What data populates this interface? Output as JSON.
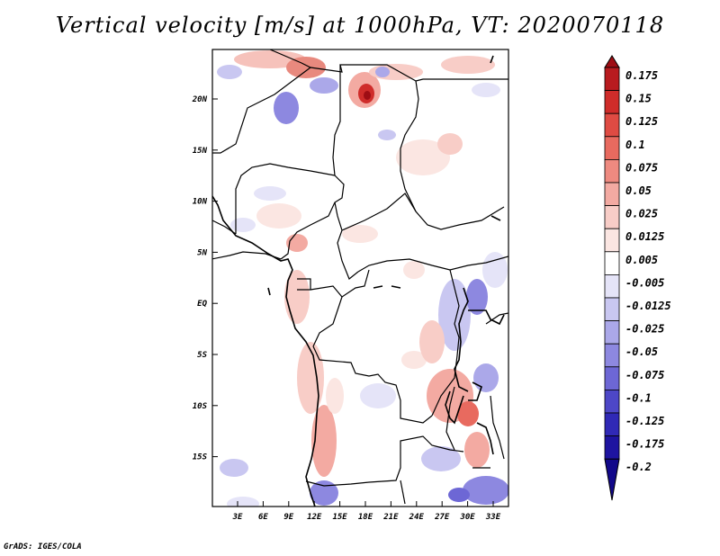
{
  "title": "Vertical velocity [m/s] at 1000hPa, VT: 2020070118",
  "credit": "GrADS: IGES/COLA",
  "map": {
    "lat_labels": [
      "20N",
      "15N",
      "10N",
      "5N",
      "EQ",
      "5S",
      "10S",
      "15S"
    ],
    "lon_labels": [
      "3E",
      "6E",
      "9E",
      "12E",
      "15E",
      "18E",
      "21E",
      "24E",
      "27E",
      "30E",
      "33E"
    ]
  },
  "colorbar": {
    "labels": [
      "0.175",
      "0.15",
      "0.125",
      "0.1",
      "0.075",
      "0.05",
      "0.025",
      "0.0125",
      "0.005",
      "-0.005",
      "-0.0125",
      "-0.025",
      "-0.05",
      "-0.075",
      "-0.1",
      "-0.125",
      "-0.175",
      "-0.2"
    ],
    "colors": [
      "#9e0d14",
      "#b81b1f",
      "#cf2c2a",
      "#df4b43",
      "#e86a5f",
      "#ee8a80",
      "#f3aaa2",
      "#f8cdc7",
      "#fbe6e2",
      "#ffffff",
      "#e5e4f8",
      "#c9c7f1",
      "#aba8e9",
      "#8d88e0",
      "#6d67d5",
      "#4d47c7",
      "#3029b6",
      "#1e14a0",
      "#12088a"
    ]
  }
}
